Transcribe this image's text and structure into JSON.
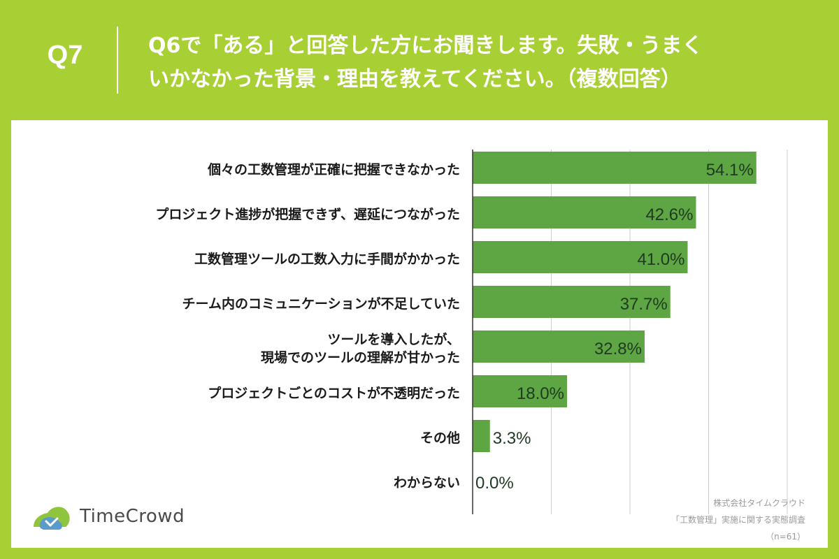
{
  "header": {
    "question_number": "Q7",
    "title_line1": "Q6で「ある」と回答した方にお聞きします。失敗・うまく",
    "title_line2": "いかなかった背景・理由を教えてください。（複数回答）"
  },
  "colors": {
    "background": "#a8cf34",
    "bar": "#5ea643",
    "panel": "#ffffff",
    "grid": "#cccccc"
  },
  "chart_data": {
    "type": "bar",
    "orientation": "horizontal",
    "categories": [
      [
        "個々の工数管理が正確に把握できなかった"
      ],
      [
        "プロジェクト進捗が把握できず、遅延につながった"
      ],
      [
        "工数管理ツールの工数入力に手間がかかった"
      ],
      [
        "チーム内のコミュニケーションが不足していた"
      ],
      [
        "ツールを導入したが、",
        "現場でのツールの理解が甘かった"
      ],
      [
        "プロジェクトごとのコストが不透明だった"
      ],
      [
        "その他"
      ],
      [
        "わからない"
      ]
    ],
    "values": [
      54.1,
      42.6,
      41.0,
      37.7,
      32.8,
      18.0,
      3.3,
      0.0
    ],
    "value_labels": [
      "54.1%",
      "42.6%",
      "41.0%",
      "37.7%",
      "32.8%",
      "18.0%",
      "3.3%",
      "0.0%"
    ],
    "xlim": [
      0,
      60
    ],
    "grid_step": 15,
    "grid": true,
    "title": "",
    "xlabel": "",
    "ylabel": ""
  },
  "footer": {
    "logo_text": "TimeCrowd",
    "logo_icon": "timecrowd-logo-icon",
    "company": "株式会社タイムクラウド",
    "survey": "「工数管理」実施に関する実態調査",
    "sample": "（n=61）"
  }
}
